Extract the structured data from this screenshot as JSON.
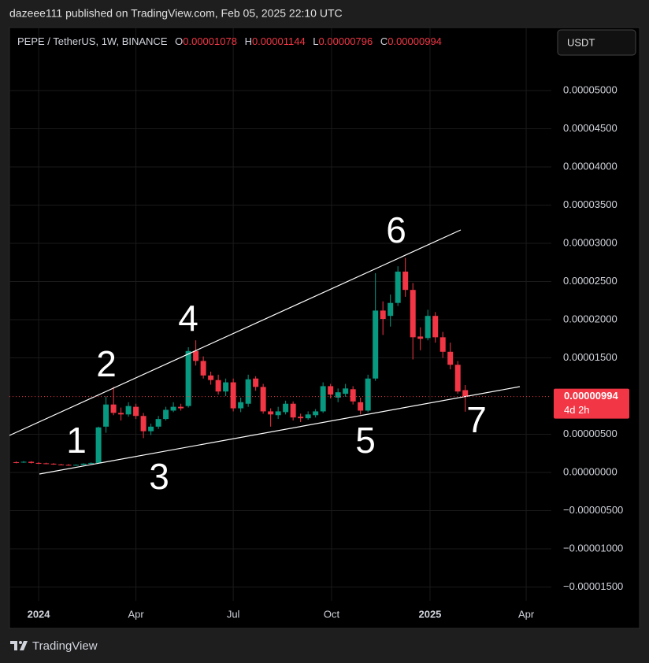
{
  "header": {
    "publisher": "dazeee111 published on TradingView.com, Feb 05, 2025 22:10 UTC",
    "currency_button": "USDT"
  },
  "chart_data": {
    "type": "candlestick",
    "symbol": "PEPE / TetherUS, 1W, BINANCE",
    "ohlc_labels": [
      "O",
      "H",
      "L",
      "C"
    ],
    "countdown": "4d 2h",
    "up_color": "#089981",
    "down_color": "#f23645",
    "open": [
      1.35e-06,
      1.3e-06,
      1.4e-06,
      1.25e-06,
      1.2e-06,
      1.15e-06,
      1.05e-06,
      1e-06,
      9.5e-07,
      1e-06,
      1.15e-06,
      1.25e-06,
      6e-06,
      8.9e-06,
      7.8e-06,
      7.6e-06,
      8.6e-06,
      7.4e-06,
      5.4e-06,
      6e-06,
      7e-06,
      8.1e-06,
      8.6e-06,
      8.7e-06,
      1.59e-05,
      1.46e-05,
      1.27e-05,
      1.21e-05,
      1.06e-05,
      1.18e-05,
      8.4e-06,
      9e-06,
      1.23e-05,
      1.12e-05,
      8e-06,
      7.5e-06,
      7.9e-06,
      9e-06,
      7.3e-06,
      7.1e-06,
      7.5e-06,
      8e-06,
      1.13e-05,
      9.8e-06,
      1.03e-05,
      1.09e-05,
      9.2e-06,
      8.1e-06,
      1.23e-05,
      2.12e-05,
      2.05e-05,
      2.22e-05,
      2.63e-05,
      2.39e-05,
      1.78e-05,
      1.76e-05,
      2.05e-05,
      1.77e-05,
      1.58e-05,
      1.41e-05,
      1.078e-05
    ],
    "high": [
      1.45e-06,
      1.5e-06,
      1.48e-06,
      1.35e-06,
      1.28e-06,
      1.22e-06,
      1.12e-06,
      1.1e-06,
      1.05e-06,
      1.2e-06,
      1.32e-06,
      6e-06,
      1e-05,
      1.12e-05,
      8.5e-06,
      9.2e-06,
      9e-06,
      7.8e-06,
      6.4e-06,
      7.4e-06,
      8.6e-06,
      9.2e-06,
      9e-06,
      1.64e-05,
      1.73e-05,
      1.52e-05,
      1.32e-05,
      1.28e-05,
      1.23e-05,
      1.23e-05,
      9.8e-06,
      1.28e-05,
      1.26e-05,
      1.16e-05,
      8.4e-06,
      8.6e-06,
      9.4e-06,
      9.3e-06,
      7.7e-06,
      8e-06,
      8.3e-06,
      1.18e-05,
      1.16e-05,
      1.1e-05,
      1.16e-05,
      1.13e-05,
      9.8e-06,
      1.28e-05,
      2.61e-05,
      2.24e-05,
      2.33e-05,
      2.7e-05,
      2.81e-05,
      2.48e-05,
      1.9e-05,
      2.13e-05,
      2.1e-05,
      1.84e-05,
      1.7e-05,
      1.46e-05,
      1.144e-05
    ],
    "low": [
      1.2e-06,
      1.25e-06,
      1.18e-06,
      1.1e-06,
      1.08e-06,
      1e-06,
      9.5e-07,
      8.8e-07,
      9e-07,
      9.6e-07,
      1.1e-06,
      1.2e-06,
      5.2e-06,
      7.5e-06,
      6.8e-06,
      7.3e-06,
      7e-06,
      4.5e-06,
      4.9e-06,
      5.7e-06,
      6.8e-06,
      7.9e-06,
      8.1e-06,
      8.5e-06,
      1.4e-05,
      1.23e-05,
      1.15e-05,
      1.02e-05,
      1e-05,
      8e-06,
      7.9e-06,
      8.6e-06,
      1.07e-05,
      7.7e-06,
      6e-06,
      7e-06,
      7.6e-06,
      6.8e-06,
      6.6e-06,
      6.9e-06,
      7.2e-06,
      7.8e-06,
      9.7e-06,
      9.2e-06,
      9.9e-06,
      8.9e-06,
      7.6e-06,
      7.9e-06,
      1.2e-05,
      1.8e-05,
      1.91e-05,
      2.18e-05,
      2.3e-05,
      1.48e-05,
      1.6e-05,
      1.73e-05,
      1.7e-05,
      1.5e-05,
      1.35e-05,
      1.03e-05,
      7.96e-06
    ],
    "close": [
      1.3e-06,
      1.4e-06,
      1.25e-06,
      1.2e-06,
      1.15e-06,
      1.05e-06,
      1e-06,
      9.5e-07,
      1e-06,
      1.15e-06,
      1.25e-06,
      5.9e-06,
      8.9e-06,
      7.8e-06,
      7.6e-06,
      8.7e-06,
      7.4e-06,
      5.4e-06,
      6e-06,
      7e-06,
      8.2e-06,
      8.6e-06,
      8.4e-06,
      1.59e-05,
      1.46e-05,
      1.27e-05,
      1.21e-05,
      1.06e-05,
      1.18e-05,
      8.4e-06,
      9.2e-06,
      1.22e-05,
      1.12e-05,
      8e-06,
      7.6e-06,
      8e-06,
      9e-06,
      7.2e-06,
      7.1e-06,
      7.6e-06,
      8e-06,
      1.13e-05,
      1.02e-05,
      1.05e-05,
      1.1e-05,
      9.3e-06,
      8.1e-06,
      1.23e-05,
      2.12e-05,
      2.01e-05,
      2.22e-05,
      2.63e-05,
      2.39e-05,
      1.77e-05,
      1.75e-05,
      2.05e-05,
      1.77e-05,
      1.58e-05,
      1.41e-05,
      1.06e-05,
      9.94e-06
    ],
    "xlim": [
      -0.9,
      71.5
    ],
    "xticks": [
      {
        "value": 3,
        "label": "2024"
      },
      {
        "value": 16,
        "label": "Apr"
      },
      {
        "value": 29,
        "label": "Jul"
      },
      {
        "value": 42.14,
        "label": "Oct"
      },
      {
        "value": 55.29,
        "label": "2025"
      },
      {
        "value": 68.14,
        "label": "Apr"
      }
    ],
    "ylim": [
      -1.68e-05,
      5.825e-05
    ],
    "yticks": [
      {
        "value": 5e-05,
        "label": "0.00005000"
      },
      {
        "value": 4.5e-05,
        "label": "0.00004500"
      },
      {
        "value": 4e-05,
        "label": "0.00004000"
      },
      {
        "value": 3.5e-05,
        "label": "0.00003500"
      },
      {
        "value": 3e-05,
        "label": "0.00003000"
      },
      {
        "value": 2.5e-05,
        "label": "0.00002500"
      },
      {
        "value": 2e-05,
        "label": "0.00002000"
      },
      {
        "value": 1.5e-05,
        "label": "0.00001500"
      },
      {
        "value": 5e-06,
        "label": "0.00000500"
      },
      {
        "value": 0,
        "label": "0.00000000"
      },
      {
        "value": -5e-06,
        "label": "−0.00000500"
      },
      {
        "value": -1e-05,
        "label": "−0.00001000"
      },
      {
        "value": -1.5e-05,
        "label": "−0.00001500"
      }
    ],
    "grid": true,
    "annotations": [
      "1",
      "2",
      "3",
      "4",
      "5",
      "6",
      "7"
    ]
  },
  "footer": {
    "brand": "TradingView"
  }
}
